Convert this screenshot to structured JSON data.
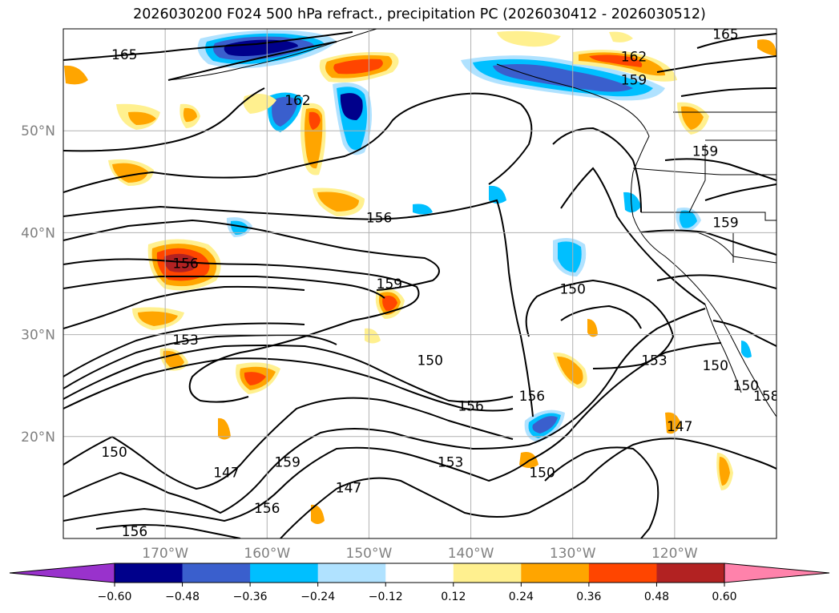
{
  "title": "2026030200 F024 500 hPa refract., precipitation PC (2026030412 - 2026030512)",
  "map": {
    "lon_range": [
      -180,
      -110
    ],
    "lat_range": [
      10,
      60
    ],
    "gridlines": true,
    "lat_labels": [
      "50°N",
      "40°N",
      "30°N",
      "20°N"
    ],
    "lat_values": [
      50,
      40,
      30,
      20
    ],
    "lon_labels": [
      "170°W",
      "160°W",
      "150°W",
      "140°W",
      "130°W",
      "120°W"
    ],
    "lon_values": [
      -170,
      -160,
      -150,
      -140,
      -130,
      -120
    ],
    "contour_labels": [
      {
        "text": "165",
        "lon": -174,
        "lat": 57.5
      },
      {
        "text": "165",
        "lon": -115,
        "lat": 59.5
      },
      {
        "text": "162",
        "lon": -157,
        "lat": 53
      },
      {
        "text": "162",
        "lon": -124,
        "lat": 57.3
      },
      {
        "text": "159",
        "lon": -124,
        "lat": 55
      },
      {
        "text": "159",
        "lon": -117,
        "lat": 48
      },
      {
        "text": "159",
        "lon": -115,
        "lat": 41
      },
      {
        "text": "156",
        "lon": -149,
        "lat": 41.5
      },
      {
        "text": "156",
        "lon": -168,
        "lat": 37
      },
      {
        "text": "159",
        "lon": -148,
        "lat": 35
      },
      {
        "text": "153",
        "lon": -168,
        "lat": 29.5
      },
      {
        "text": "150",
        "lon": -130,
        "lat": 34.5
      },
      {
        "text": "150",
        "lon": -144,
        "lat": 27.5
      },
      {
        "text": "153",
        "lon": -122,
        "lat": 27.5
      },
      {
        "text": "150",
        "lon": -116,
        "lat": 27
      },
      {
        "text": "150",
        "lon": -113,
        "lat": 25
      },
      {
        "text": "158",
        "lon": -111,
        "lat": 24
      },
      {
        "text": "156",
        "lon": -140,
        "lat": 23
      },
      {
        "text": "156",
        "lon": -134,
        "lat": 24
      },
      {
        "text": "147",
        "lon": -119.5,
        "lat": 21
      },
      {
        "text": "150",
        "lon": -175,
        "lat": 18.5
      },
      {
        "text": "147",
        "lon": -164,
        "lat": 16.5
      },
      {
        "text": "159",
        "lon": -158,
        "lat": 17.5
      },
      {
        "text": "153",
        "lon": -142,
        "lat": 17.5
      },
      {
        "text": "150",
        "lon": -133,
        "lat": 16.5
      },
      {
        "text": "147",
        "lon": -152,
        "lat": 15
      },
      {
        "text": "156",
        "lon": -160,
        "lat": 13
      },
      {
        "text": "156",
        "lon": -173,
        "lat": 10.7
      }
    ]
  },
  "colorbar": {
    "ticks": [
      "−0.60",
      "−0.48",
      "−0.36",
      "−0.24",
      "−0.12",
      "0.12",
      "0.24",
      "0.36",
      "0.48",
      "0.60"
    ],
    "colors": [
      "#9932cc",
      "#00008b",
      "#3a5fcd",
      "#00bfff",
      "#b0e2ff",
      "#ffffff",
      "#fff08f",
      "#ffa500",
      "#ff4500",
      "#b22222",
      "#ff82ab"
    ]
  }
}
